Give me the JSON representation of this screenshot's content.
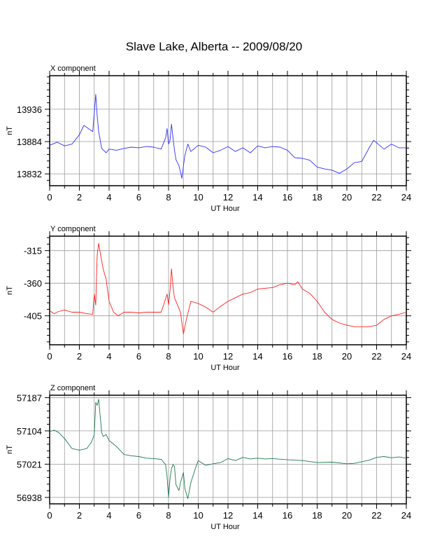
{
  "page": {
    "title": "Slave Lake, Alberta -- 2009/08/20"
  },
  "chart_data": [
    {
      "type": "line",
      "title": "X component",
      "xlabel": "UT Hour",
      "ylabel": "nT",
      "xlim": [
        0,
        24
      ],
      "ylim": [
        13813,
        13990
      ],
      "x_ticks": [
        0,
        2,
        4,
        6,
        8,
        10,
        12,
        14,
        16,
        18,
        20,
        22,
        24
      ],
      "y_ticks": [
        13832,
        13884,
        13936
      ],
      "grid": true,
      "color": "#3030ff",
      "series": [
        {
          "x": [
            0,
            0.5,
            1.0,
            1.5,
            2.0,
            2.3,
            2.6,
            2.9,
            3.0,
            3.1,
            3.2,
            3.3,
            3.5,
            3.8,
            4.0,
            4.5,
            5.0,
            5.5,
            6.0,
            6.5,
            7.0,
            7.5,
            7.8,
            7.9,
            8.0,
            8.1,
            8.2,
            8.3,
            8.4,
            8.5,
            8.7,
            8.9,
            9.0,
            9.1,
            9.3,
            9.5,
            10.0,
            10.5,
            11.0,
            11.5,
            12.0,
            12.5,
            13.0,
            13.5,
            14.0,
            14.5,
            15.0,
            15.5,
            16.0,
            16.5,
            17.0,
            17.5,
            18.0,
            18.5,
            19.0,
            19.5,
            20.0,
            20.5,
            21.0,
            21.5,
            21.8,
            22.0,
            22.5,
            23.0,
            23.5,
            24.0
          ],
          "y": [
            13878,
            13883,
            13877,
            13880,
            13895,
            13910,
            13905,
            13900,
            13930,
            13960,
            13925,
            13900,
            13873,
            13866,
            13872,
            13870,
            13873,
            13875,
            13874,
            13876,
            13875,
            13872,
            13890,
            13905,
            13880,
            13886,
            13912,
            13890,
            13870,
            13855,
            13845,
            13825,
            13845,
            13862,
            13880,
            13868,
            13878,
            13875,
            13866,
            13870,
            13876,
            13868,
            13874,
            13866,
            13877,
            13874,
            13876,
            13875,
            13870,
            13858,
            13857,
            13854,
            13843,
            13840,
            13838,
            13833,
            13840,
            13850,
            13852,
            13874,
            13886,
            13882,
            13872,
            13880,
            13874,
            13874
          ]
        }
      ]
    },
    {
      "type": "line",
      "title": "Y component",
      "xlabel": "UT Hour",
      "ylabel": "nT",
      "xlim": [
        0,
        24
      ],
      "ylim": [
        -445,
        -295
      ],
      "x_ticks": [
        0,
        2,
        4,
        6,
        8,
        10,
        12,
        14,
        16,
        18,
        20,
        22,
        24
      ],
      "y_ticks": [
        -405,
        -360,
        -315
      ],
      "y_tick_labels": [
        "-405",
        "-360",
        "-315"
      ],
      "grid": true,
      "color": "#ff2020",
      "series": [
        {
          "x": [
            0,
            0.3,
            0.6,
            1.0,
            1.5,
            2.0,
            2.5,
            2.9,
            3.0,
            3.1,
            3.2,
            3.3,
            3.4,
            3.6,
            3.8,
            4.0,
            4.3,
            4.6,
            5.0,
            5.5,
            6.0,
            6.5,
            7.0,
            7.5,
            7.7,
            7.9,
            8.0,
            8.1,
            8.2,
            8.3,
            8.4,
            8.6,
            8.8,
            8.9,
            9.0,
            9.2,
            9.5,
            10.0,
            10.5,
            11.0,
            11.5,
            12.0,
            12.5,
            13.0,
            13.5,
            14.0,
            14.5,
            15.0,
            15.5,
            16.0,
            16.5,
            16.7,
            17.0,
            17.5,
            18.0,
            18.5,
            19.0,
            19.5,
            20.0,
            20.5,
            21.0,
            21.5,
            22.0,
            22.5,
            23.0,
            23.5,
            24.0
          ],
          "y": [
            -398,
            -402,
            -399,
            -397,
            -400,
            -400,
            -402,
            -403,
            -375,
            -390,
            -320,
            -305,
            -318,
            -340,
            -355,
            -385,
            -400,
            -405,
            -400,
            -400,
            -401,
            -400,
            -400,
            -400,
            -388,
            -375,
            -390,
            -370,
            -340,
            -365,
            -380,
            -390,
            -400,
            -415,
            -430,
            -410,
            -385,
            -388,
            -393,
            -400,
            -392,
            -385,
            -380,
            -375,
            -373,
            -368,
            -367,
            -366,
            -362,
            -360,
            -362,
            -358,
            -368,
            -374,
            -385,
            -400,
            -410,
            -415,
            -418,
            -420,
            -420,
            -420,
            -418,
            -410,
            -405,
            -403,
            -400
          ]
        }
      ]
    },
    {
      "type": "line",
      "title": "Z component",
      "xlabel": "UT Hour",
      "ylabel": "nT",
      "xlim": [
        0,
        24
      ],
      "ylim": [
        56922,
        57193
      ],
      "x_ticks": [
        0,
        2,
        4,
        6,
        8,
        10,
        12,
        14,
        16,
        18,
        20,
        22,
        24
      ],
      "y_ticks": [
        56938,
        57021,
        57104,
        57187
      ],
      "grid": true,
      "color": "#207a50",
      "series": [
        {
          "x": [
            0,
            0.3,
            0.6,
            1.0,
            1.5,
            2.0,
            2.5,
            2.8,
            3.0,
            3.1,
            3.2,
            3.3,
            3.4,
            3.5,
            3.6,
            3.8,
            4.0,
            4.5,
            5.0,
            5.5,
            6.0,
            6.5,
            7.0,
            7.5,
            7.8,
            7.9,
            8.0,
            8.1,
            8.2,
            8.3,
            8.4,
            8.5,
            8.7,
            8.8,
            9.0,
            9.1,
            9.3,
            9.5,
            9.8,
            10.0,
            10.5,
            11.0,
            11.5,
            12.0,
            12.5,
            13.0,
            13.5,
            14.0,
            14.5,
            15.0,
            16.0,
            17.0,
            18.0,
            19.0,
            20.0,
            20.5,
            21.0,
            21.5,
            22.0,
            22.5,
            23.0,
            23.5,
            24.0
          ],
          "y": [
            57102,
            57106,
            57100,
            57085,
            57060,
            57056,
            57060,
            57075,
            57095,
            57175,
            57168,
            57183,
            57140,
            57100,
            57090,
            57095,
            57080,
            57065,
            57045,
            57042,
            57040,
            57036,
            57035,
            57033,
            57020,
            56990,
            56938,
            56985,
            57010,
            57020,
            57015,
            56970,
            56955,
            56975,
            57000,
            56960,
            56935,
            56975,
            57010,
            57030,
            57018,
            57022,
            57025,
            57035,
            57030,
            57038,
            57034,
            57036,
            57034,
            57035,
            57032,
            57030,
            57025,
            57026,
            57022,
            57023,
            57027,
            57031,
            57038,
            57040,
            57037,
            57039,
            57036
          ]
        }
      ]
    }
  ]
}
